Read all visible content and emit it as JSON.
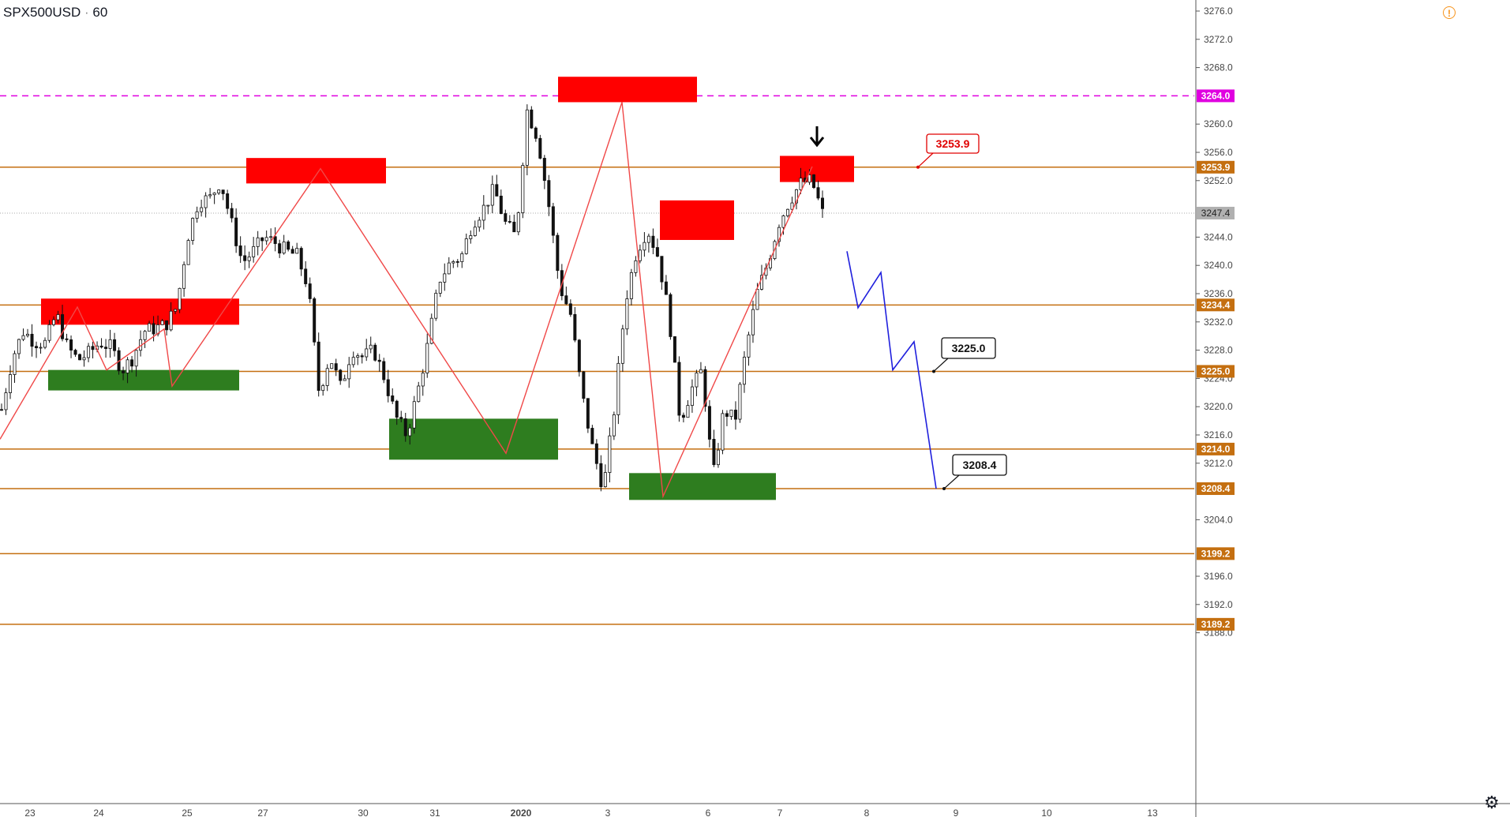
{
  "header": {
    "symbol": "SPX500USD",
    "separator": "·",
    "interval": "60"
  },
  "icons": {
    "warning": "warning-circle-icon",
    "settings": "gear-icon"
  },
  "colors": {
    "level": "#c46f10",
    "bull_zone": "#2e7d1f",
    "bear_zone": "#ff0000",
    "trend": "#f04848",
    "projection": "#2020dd",
    "dash": "#e000e0",
    "candle": "#111111",
    "price_tag": "#b0b0b0"
  },
  "chart_data": {
    "type": "candlestick",
    "title": "SPX500USD · 60",
    "ylim": [
      3186.6,
      3277.5
    ],
    "y_ticks": [
      3276.0,
      3272.0,
      3268.0,
      3260.0,
      3256.0,
      3252.0,
      3244.0,
      3240.0,
      3236.0,
      3232.0,
      3228.0,
      3224.0,
      3220.0,
      3216.0,
      3212.0,
      3204.0,
      3196.0,
      3192.0,
      3188.0
    ],
    "x_ticks": [
      "23",
      "24",
      "25",
      "27",
      "30",
      "31",
      "2020",
      "3",
      "6",
      "7",
      "8",
      "9",
      "10",
      "13"
    ],
    "horizontal_levels": [
      3253.9,
      3234.4,
      3225.0,
      3214.0,
      3208.4,
      3199.2,
      3189.2
    ],
    "dashed_level": 3264.0,
    "last_price": 3247.4,
    "callouts": [
      "3253.9",
      "3225.0",
      "3208.4"
    ],
    "supply_zones": [
      {
        "from": "23",
        "to": "25",
        "low": 3231.6,
        "high": 3235.3
      },
      {
        "from": "27",
        "to": "30",
        "low": 3251.6,
        "high": 3255.2
      },
      {
        "from": "2020",
        "to": "3",
        "low": 3263.1,
        "high": 3266.7
      },
      {
        "from": "6",
        "to": "6",
        "low": 3243.6,
        "high": 3249.2
      },
      {
        "from": "7",
        "to": "7",
        "low": 3251.8,
        "high": 3255.5
      }
    ],
    "demand_zones": [
      {
        "from": "23",
        "to": "25",
        "low": 3222.3,
        "high": 3225.2
      },
      {
        "from": "30",
        "to": "2020",
        "low": 3212.5,
        "high": 3218.3
      },
      {
        "from": "3",
        "to": "6",
        "low": 3206.8,
        "high": 3210.6
      }
    ],
    "trend_path": [
      3215.4,
      3234.1,
      3225.2,
      3231.0,
      3222.9,
      3253.7,
      3213.4,
      3263.1,
      3207.3,
      3254.0
    ],
    "projection_path": [
      3242.0,
      3234.0,
      3239.0,
      3225.2,
      3229.2,
      3208.4
    ],
    "close_path": [
      3219.6,
      3227.0,
      3230.7,
      3229.2,
      3229.0,
      3233.2,
      3228.4,
      3226.6,
      3227.6,
      3229.1,
      3228.4,
      3225.2,
      3227.0,
      3230.7,
      3231.1,
      3231.6,
      3234.1,
      3244.0,
      3249.2,
      3249.4,
      3252.0,
      3246.0,
      3240.4,
      3242.0,
      3244.0,
      3243.2,
      3242.0,
      3241.4,
      3237.0,
      3222.0,
      3227.2,
      3222.6,
      3228.2,
      3227.0,
      3228.0,
      3224.0,
      3218.6,
      3216.0,
      3222.0,
      3229.2,
      3238.0,
      3240.4,
      3241.2,
      3246.0,
      3248.0,
      3250.8,
      3246.0,
      3244.0,
      3262.0,
      3258.0,
      3248.4,
      3237.0,
      3233.0,
      3222.0,
      3214.0,
      3208.4,
      3220.0,
      3235.0,
      3242.0,
      3245.2,
      3241.2,
      3232.6,
      3218.0,
      3222.4,
      3225.2,
      3210.0,
      3219.6,
      3218.0,
      3228.0,
      3236.0,
      3240.4,
      3246.0,
      3249.2,
      3251.6,
      3252.0,
      3247.4
    ]
  }
}
